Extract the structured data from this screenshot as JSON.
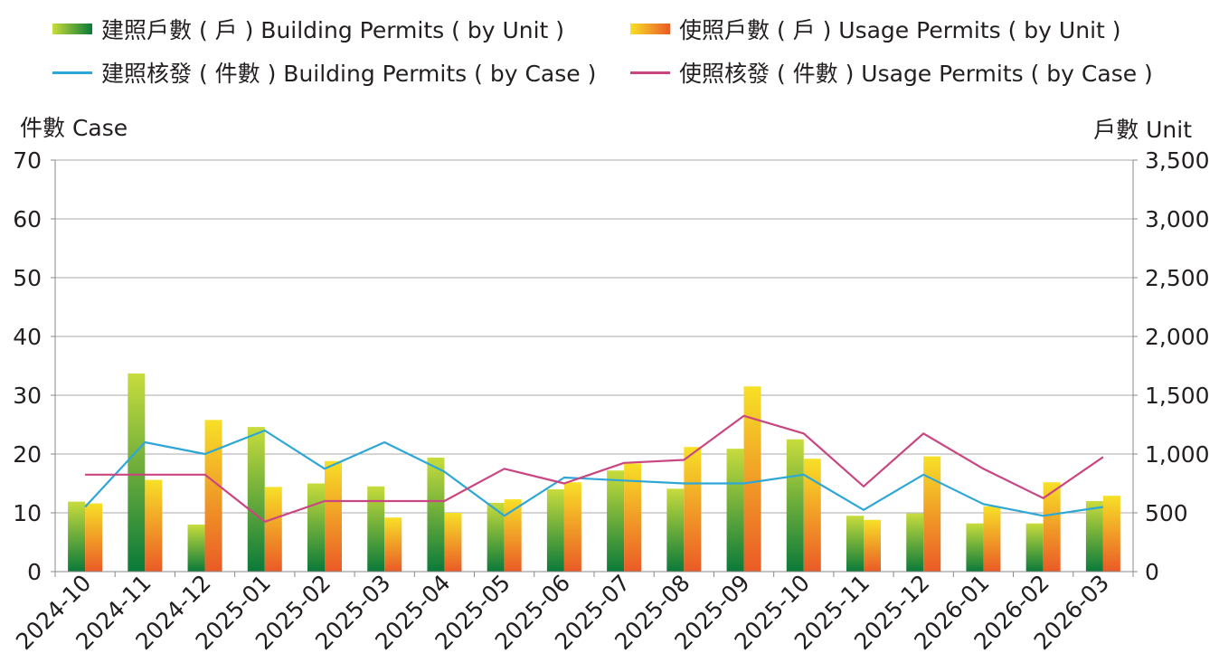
{
  "legend": {
    "building_units": "建照戶數 ( 戶 ) Building Permits ( by Unit )",
    "usage_units": "使照戶數 ( 戶 ) Usage Permits ( by Unit )",
    "building_cases": "建照核發 ( 件數 ) Building Permits ( by Case )",
    "usage_cases": "使照核發 ( 件數 ) Usage Permits ( by Case )"
  },
  "colors": {
    "building_cases_line": "#2ea6d6",
    "usage_cases_line": "#c94680",
    "building_bar_top": "#c8dc3c",
    "building_bar_bottom": "#0a7a3a",
    "usage_bar_top": "#f7e027",
    "usage_bar_bottom": "#ea5a27",
    "grid": "#aaaaaa"
  },
  "chart_data": {
    "type": "bar",
    "left_axis_label": "件數 Case",
    "right_axis_label": "戶數 Unit",
    "left_ylim": [
      0,
      70
    ],
    "right_ylim": [
      0,
      3500
    ],
    "left_ticks": [
      "0",
      "10",
      "20",
      "30",
      "40",
      "50",
      "60",
      "70"
    ],
    "right_ticks": [
      "0",
      "500",
      "1,000",
      "1,500",
      "2,000",
      "2,500",
      "3,000",
      "3,500"
    ],
    "grid": true,
    "legend_position": "top",
    "categories": [
      "2024-10",
      "2024-11",
      "2024-12",
      "2025-01",
      "2025-02",
      "2025-03",
      "2025-04",
      "2025-05",
      "2025-06",
      "2025-07",
      "2025-08",
      "2025-09",
      "2025-10",
      "2025-11",
      "2025-12",
      "2026-01",
      "2026-02",
      "2026-03"
    ],
    "series": [
      {
        "name": "建照戶數 ( 戶 ) Building Permits ( by Unit )",
        "axis": "right",
        "kind": "bar",
        "values": [
          595,
          1685,
          400,
          1230,
          750,
          725,
          970,
          585,
          700,
          860,
          705,
          1045,
          1125,
          475,
          495,
          410,
          410,
          600
        ]
      },
      {
        "name": "使照戶數 ( 戶 ) Usage Permits ( by Unit )",
        "axis": "right",
        "kind": "bar",
        "values": [
          580,
          780,
          1290,
          720,
          940,
          460,
          500,
          615,
          760,
          920,
          1060,
          1575,
          960,
          440,
          980,
          555,
          760,
          645
        ]
      },
      {
        "name": "建照核發 ( 件數 ) Building Permits ( by Case )",
        "axis": "left",
        "kind": "line",
        "values": [
          11,
          22,
          20,
          24,
          17.5,
          22,
          17,
          9.5,
          16,
          15.5,
          15,
          15,
          16.5,
          10.5,
          16.5,
          11.5,
          9.5,
          11
        ]
      },
      {
        "name": "使照核發 ( 件數 ) Usage Permits ( by Case )",
        "axis": "left",
        "kind": "line",
        "values": [
          16.5,
          16.5,
          16.5,
          8.5,
          12,
          12,
          12,
          17.5,
          15,
          18.5,
          19,
          26.5,
          23.5,
          14.5,
          23.5,
          17.5,
          12.5,
          19.5
        ]
      }
    ]
  }
}
